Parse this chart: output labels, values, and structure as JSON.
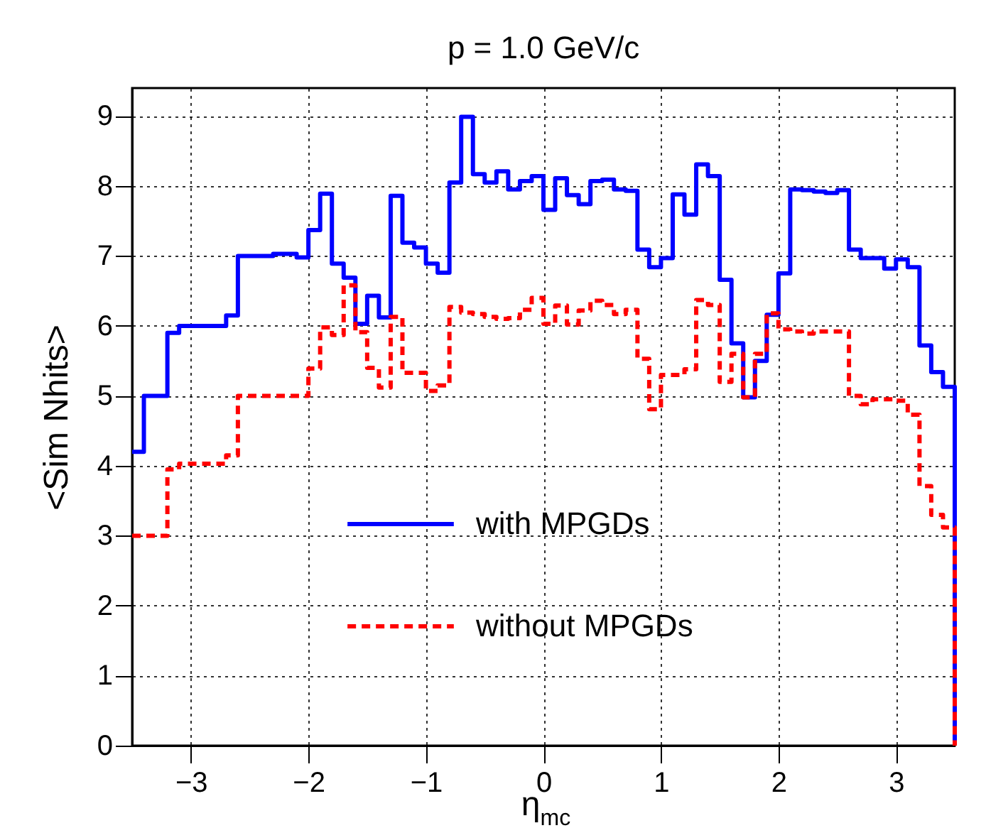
{
  "chart_data": {
    "type": "histogram",
    "title": "p = 1.0 GeV/c",
    "xlabel": "η$_{mc}$",
    "ylabel": "<Sim Nhits>",
    "bins": [
      -3.5,
      -3.4,
      -3.3,
      -3.2,
      -3.1,
      -3.0,
      -2.9,
      -2.8,
      -2.7,
      -2.6,
      -2.5,
      -2.4,
      -2.3,
      -2.2,
      -2.1,
      -2.0,
      -1.9,
      -1.8,
      -1.7,
      -1.6,
      -1.5,
      -1.4,
      -1.3,
      -1.2,
      -1.1,
      -1.0,
      -0.9,
      -0.8,
      -0.7,
      -0.6,
      -0.5,
      -0.4,
      -0.3,
      -0.2,
      -0.1,
      0.0,
      0.1,
      0.2,
      0.3,
      0.4,
      0.5,
      0.6,
      0.7,
      0.8,
      0.9,
      1.0,
      1.1,
      1.2,
      1.3,
      1.4,
      1.5,
      1.6,
      1.7,
      1.8,
      1.9,
      2.0,
      2.1,
      2.2,
      2.3,
      2.4,
      2.5,
      2.6,
      2.7,
      2.8,
      2.9,
      3.0,
      3.1,
      3.2,
      3.3,
      3.4,
      3.5
    ],
    "series": [
      {
        "name": "with MPGDs",
        "color": "#0000ff",
        "line_style": "solid",
        "values": [
          4.2,
          5.0,
          5.0,
          5.9,
          6.0,
          6.0,
          6.0,
          6.0,
          6.15,
          7.0,
          7.0,
          7.0,
          7.03,
          7.03,
          6.98,
          7.37,
          7.89,
          6.89,
          6.69,
          6.03,
          6.43,
          6.12,
          7.86,
          7.19,
          7.12,
          6.89,
          6.76,
          8.05,
          8.99,
          8.17,
          8.05,
          8.21,
          7.95,
          8.07,
          8.14,
          7.66,
          8.11,
          7.87,
          7.74,
          8.07,
          8.09,
          7.95,
          7.93,
          7.09,
          6.84,
          6.97,
          7.88,
          7.59,
          8.31,
          8.14,
          6.66,
          5.75,
          4.98,
          5.5,
          6.16,
          6.75,
          7.95,
          7.94,
          7.92,
          7.9,
          7.94,
          7.09,
          6.97,
          6.97,
          6.82,
          6.95,
          6.84,
          5.72,
          5.34,
          5.13
        ]
      },
      {
        "name": "without MPGDs",
        "color": "#ff0000",
        "line_style": "dashed",
        "values": [
          3.0,
          3.0,
          3.0,
          3.95,
          4.03,
          4.03,
          4.03,
          4.03,
          4.15,
          5.0,
          5.0,
          5.0,
          5.0,
          5.0,
          5.0,
          5.39,
          5.98,
          5.87,
          6.58,
          5.91,
          5.4,
          5.12,
          6.13,
          5.33,
          5.33,
          5.07,
          5.15,
          6.27,
          6.19,
          6.17,
          6.13,
          6.1,
          6.11,
          6.23,
          6.4,
          6.03,
          6.29,
          6.02,
          6.22,
          6.36,
          6.3,
          6.17,
          6.23,
          5.53,
          4.81,
          5.3,
          5.3,
          5.38,
          6.37,
          6.3,
          5.2,
          5.6,
          4.98,
          5.6,
          6.18,
          5.95,
          5.92,
          5.89,
          5.92,
          5.92,
          5.92,
          5.0,
          4.88,
          4.95,
          4.95,
          4.93,
          4.73,
          3.71,
          3.3,
          3.12
        ]
      }
    ],
    "xlim": [
      -3.5,
      3.5
    ],
    "xticks": [
      -3,
      -2,
      -1,
      0,
      1,
      2,
      3
    ],
    "ylim": [
      0,
      9.4
    ],
    "yticks": [
      0,
      1,
      2,
      3,
      4,
      5,
      6,
      7,
      8,
      9
    ],
    "grid": true,
    "legend": "bottom"
  }
}
